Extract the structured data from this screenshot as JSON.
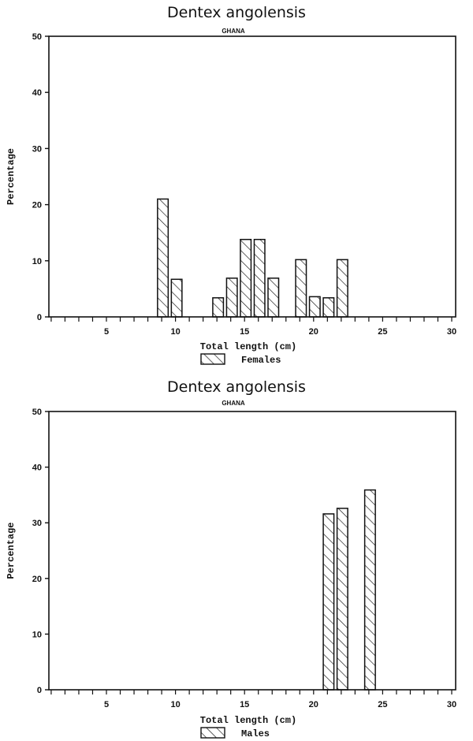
{
  "chart_data": [
    {
      "type": "bar",
      "title": "Dentex angolensis",
      "subtitle": "GHANA",
      "xlabel": "Total length (cm)",
      "ylabel": "Percentage",
      "xlim": [
        1,
        30
      ],
      "ylim": [
        0,
        50
      ],
      "x_ticks": [
        5,
        10,
        15,
        20,
        25,
        30
      ],
      "y_ticks": [
        0,
        10,
        20,
        30,
        40,
        50
      ],
      "grid": false,
      "legend_position": "bottom",
      "series": [
        {
          "name": "Females",
          "pattern": "diagonal-hatch",
          "x": [
            9,
            10,
            13,
            14,
            15,
            16,
            17,
            19,
            20,
            21,
            22
          ],
          "values": [
            21.0,
            6.7,
            3.4,
            6.9,
            13.8,
            13.8,
            6.9,
            10.2,
            3.6,
            3.4,
            10.2
          ]
        }
      ]
    },
    {
      "type": "bar",
      "title": "Dentex angolensis",
      "subtitle": "GHANA",
      "xlabel": "Total length (cm)",
      "ylabel": "Percentage",
      "xlim": [
        1,
        30
      ],
      "ylim": [
        0,
        50
      ],
      "x_ticks": [
        5,
        10,
        15,
        20,
        25,
        30
      ],
      "y_ticks": [
        0,
        10,
        20,
        30,
        40,
        50
      ],
      "grid": false,
      "legend_position": "bottom",
      "series": [
        {
          "name": "Males",
          "pattern": "diagonal-hatch",
          "x": [
            21,
            22,
            24
          ],
          "values": [
            31.6,
            32.6,
            35.9
          ]
        }
      ]
    }
  ]
}
